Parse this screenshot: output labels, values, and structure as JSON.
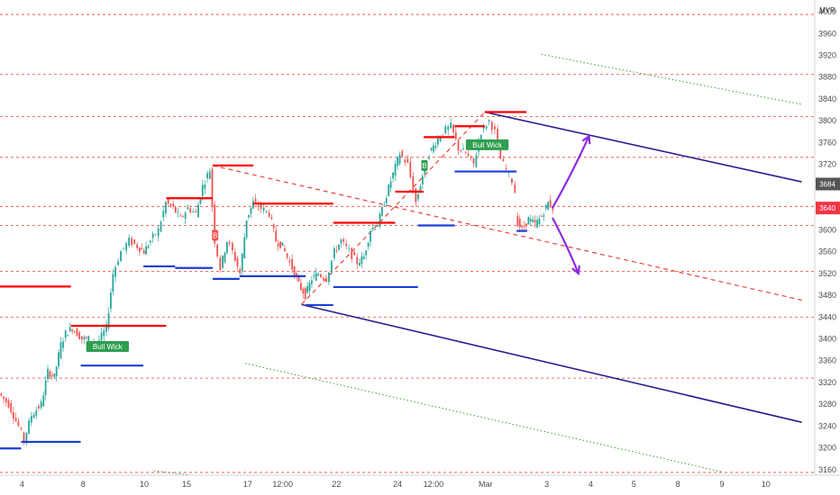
{
  "currency": "MYR",
  "colors": {
    "bull": "#26a69a",
    "bear": "#ef5350",
    "resistance": "#ff0000",
    "support": "#1a3fd6",
    "channel": "#2a1f8f",
    "channel_mid": "#e8453c",
    "outer_channel": "#3c9a3c",
    "arrow": "#8a2be2",
    "hline": "#e8453c",
    "badge_bg": "#2e9e4f",
    "price_dark": "#555555",
    "price_red": "#f23645"
  },
  "chart_data": {
    "type": "candlestick",
    "currency": "MYR",
    "ylim": [
      3140,
      4010
    ],
    "xlim": [
      0,
      100
    ],
    "y_ticks": [
      4000,
      3960,
      3920,
      3880,
      3840,
      3800,
      3760,
      3720,
      3680,
      3640,
      3600,
      3560,
      3520,
      3480,
      3440,
      3400,
      3360,
      3320,
      3280,
      3240,
      3200,
      3160
    ],
    "x_ticks": [
      {
        "label": "4",
        "x": 2.7
      },
      {
        "label": "8",
        "x": 10.2
      },
      {
        "label": "10",
        "x": 17.7
      },
      {
        "label": "15",
        "x": 22.9
      },
      {
        "label": "17",
        "x": 30.4
      },
      {
        "label": "12:00",
        "x": 34.7
      },
      {
        "label": "22",
        "x": 41.3
      },
      {
        "label": "24",
        "x": 48.8
      },
      {
        "label": "12:00",
        "x": 53.2
      },
      {
        "label": "Mar",
        "x": 59.6
      },
      {
        "label": "3",
        "x": 67.1
      },
      {
        "label": "4",
        "x": 72.5
      },
      {
        "label": "5",
        "x": 77.8
      },
      {
        "label": "8",
        "x": 83.2
      },
      {
        "label": "9",
        "x": 88.6
      },
      {
        "label": "10",
        "x": 94.0
      }
    ],
    "price_tags": [
      {
        "label": "3684",
        "y": 3684,
        "style": "dark"
      },
      {
        "label": "3640",
        "y": 3640,
        "style": "red"
      }
    ],
    "horizontal_levels": [
      3995,
      3885,
      3808,
      3733,
      3643,
      3608,
      3524,
      3440,
      3328,
      3155
    ],
    "path": [
      [
        0,
        3300
      ],
      [
        1.2,
        3280
      ],
      [
        2.4,
        3240
      ],
      [
        3.1,
        3215
      ],
      [
        4.0,
        3260
      ],
      [
        5.2,
        3280
      ],
      [
        6.0,
        3340
      ],
      [
        6.8,
        3330
      ],
      [
        7.6,
        3390
      ],
      [
        8.2,
        3410
      ],
      [
        9.0,
        3420
      ],
      [
        10.2,
        3400
      ],
      [
        11.0,
        3400
      ],
      [
        12.0,
        3390
      ],
      [
        13.2,
        3420
      ],
      [
        14.0,
        3520
      ],
      [
        15.0,
        3560
      ],
      [
        16.0,
        3580
      ],
      [
        17.0,
        3570
      ],
      [
        17.8,
        3560
      ],
      [
        18.6,
        3580
      ],
      [
        19.6,
        3600
      ],
      [
        20.5,
        3650
      ],
      [
        21.4,
        3640
      ],
      [
        22.3,
        3620
      ],
      [
        23.2,
        3640
      ],
      [
        24.2,
        3630
      ],
      [
        25.0,
        3680
      ],
      [
        25.9,
        3710
      ],
      [
        26.5,
        3580
      ],
      [
        27.2,
        3530
      ],
      [
        28.0,
        3580
      ],
      [
        28.7,
        3560
      ],
      [
        29.6,
        3520
      ],
      [
        30.4,
        3620
      ],
      [
        31.2,
        3650
      ],
      [
        32.2,
        3640
      ],
      [
        33.2,
        3630
      ],
      [
        34.0,
        3580
      ],
      [
        34.8,
        3570
      ],
      [
        35.4,
        3550
      ],
      [
        36.0,
        3530
      ],
      [
        36.8,
        3500
      ],
      [
        37.6,
        3480
      ],
      [
        38.4,
        3510
      ],
      [
        39.2,
        3520
      ],
      [
        40.2,
        3510
      ],
      [
        41.2,
        3560
      ],
      [
        42.0,
        3580
      ],
      [
        43.0,
        3560
      ],
      [
        44.0,
        3540
      ],
      [
        44.8,
        3550
      ],
      [
        45.6,
        3600
      ],
      [
        46.5,
        3610
      ],
      [
        47.3,
        3650
      ],
      [
        48.1,
        3690
      ],
      [
        49.2,
        3740
      ],
      [
        50.2,
        3720
      ],
      [
        51.2,
        3650
      ],
      [
        52.0,
        3700
      ],
      [
        52.8,
        3740
      ],
      [
        53.6,
        3760
      ],
      [
        54.5,
        3780
      ],
      [
        55.5,
        3790
      ],
      [
        56.4,
        3750
      ],
      [
        57.3,
        3740
      ],
      [
        58.3,
        3720
      ],
      [
        59.2,
        3780
      ],
      [
        60.2,
        3800
      ],
      [
        60.9,
        3780
      ],
      [
        61.6,
        3730
      ],
      [
        62.3,
        3710
      ],
      [
        63.0,
        3690
      ],
      [
        63.4,
        3670
      ]
    ],
    "gap_path": [
      [
        63.4,
        3620
      ],
      [
        64.2,
        3600
      ],
      [
        65.0,
        3620
      ],
      [
        65.8,
        3610
      ],
      [
        66.6,
        3625
      ],
      [
        67.4,
        3650
      ],
      [
        68.0,
        3640
      ]
    ],
    "resistance_lines": [
      {
        "x0": -1,
        "x1": 8.7,
        "y": 3496
      },
      {
        "x0": 8.7,
        "x1": 20.4,
        "y": 3424
      },
      {
        "x0": 20.4,
        "x1": 26.1,
        "y": 3658
      },
      {
        "x0": 26.1,
        "x1": 31.1,
        "y": 3718
      },
      {
        "x0": 31.1,
        "x1": 40.9,
        "y": 3648
      },
      {
        "x0": 40.9,
        "x1": 48.5,
        "y": 3613
      },
      {
        "x0": 48.5,
        "x1": 52.0,
        "y": 3670
      },
      {
        "x0": 52.0,
        "x1": 55.8,
        "y": 3770
      },
      {
        "x0": 55.8,
        "x1": 59.5,
        "y": 3790
      },
      {
        "x0": 59.5,
        "x1": 64.6,
        "y": 3816
      }
    ],
    "support_lines": [
      {
        "x0": -1,
        "x1": 2.6,
        "y": 3199
      },
      {
        "x0": 2.6,
        "x1": 9.9,
        "y": 3211
      },
      {
        "x0": 9.9,
        "x1": 17.6,
        "y": 3351
      },
      {
        "x0": 17.6,
        "x1": 21.5,
        "y": 3533
      },
      {
        "x0": 21.5,
        "x1": 26.1,
        "y": 3530
      },
      {
        "x0": 26.1,
        "x1": 29.4,
        "y": 3510
      },
      {
        "x0": 29.4,
        "x1": 37.5,
        "y": 3515
      },
      {
        "x0": 37.5,
        "x1": 40.9,
        "y": 3462
      },
      {
        "x0": 40.9,
        "x1": 51.3,
        "y": 3495
      },
      {
        "x0": 51.3,
        "x1": 55.8,
        "y": 3608
      },
      {
        "x0": 55.8,
        "x1": 63.4,
        "y": 3707
      },
      {
        "x0": 63.4,
        "x1": 64.7,
        "y": 3598
      }
    ],
    "channel_upper": [
      [
        59.5,
        3816
      ],
      [
        98.4,
        3688
      ]
    ],
    "channel_lower": [
      [
        37.0,
        3463
      ],
      [
        98.4,
        3247
      ]
    ],
    "channel_mid": [
      [
        26.1,
        3718
      ],
      [
        98.4,
        3471
      ]
    ],
    "trend_dash": [
      [
        37.0,
        3463
      ],
      [
        59.5,
        3816
      ]
    ],
    "outer_upper": [
      [
        66.4,
        3922
      ],
      [
        98.4,
        3830
      ]
    ],
    "outer_lower_a": [
      [
        30.1,
        3355
      ],
      [
        88.6,
        3156
      ]
    ],
    "outer_lower_b": [
      [
        18.9,
        3158
      ],
      [
        26.1,
        3145
      ]
    ],
    "arrows": [
      {
        "from": [
          67.8,
          3640
        ],
        "via": [
          70.1,
          3700
        ],
        "to": [
          72.3,
          3772
        ]
      },
      {
        "from": [
          67.8,
          3622
        ],
        "via": [
          69.5,
          3575
        ],
        "to": [
          71.0,
          3520
        ]
      }
    ],
    "annotations": [
      {
        "type": "badge",
        "text": "Bull Wick",
        "x": 13.2,
        "y": 3386
      },
      {
        "type": "badge",
        "text": "Bull Wick",
        "x": 59.8,
        "y": 3756
      },
      {
        "type": "marker",
        "text": "B",
        "x": 26.4,
        "y": 3590,
        "color": "#ef5350"
      },
      {
        "type": "marker",
        "text": "B",
        "x": 52.1,
        "y": 3718,
        "color": "#2e9e4f"
      }
    ]
  }
}
